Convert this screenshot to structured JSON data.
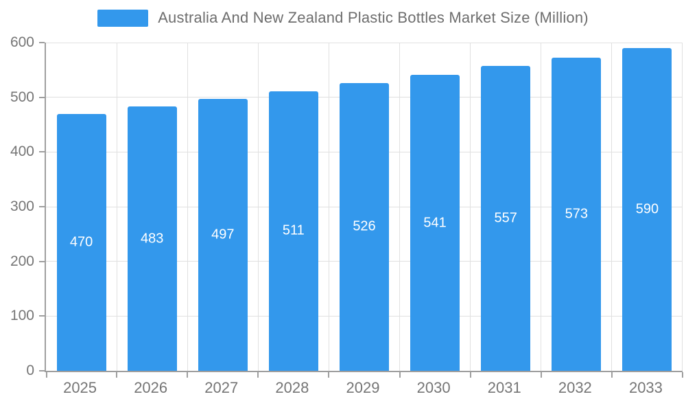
{
  "legend": {
    "title": "Australia And New Zealand Plastic Bottles Market Size (Million)"
  },
  "chart_data": {
    "type": "bar",
    "title": "Australia And New Zealand Plastic Bottles Market Size (Million)",
    "categories": [
      "2025",
      "2026",
      "2027",
      "2028",
      "2029",
      "2030",
      "2031",
      "2032",
      "2033"
    ],
    "values": [
      470,
      483,
      497,
      511,
      526,
      541,
      557,
      573,
      590
    ],
    "xlabel": "",
    "ylabel": "",
    "ylim": [
      0,
      600
    ],
    "yticks": [
      0,
      100,
      200,
      300,
      400,
      500,
      600
    ],
    "grid": true,
    "legend_position": "top",
    "bar_color": "#3398EC",
    "label_color": "#ffffff",
    "axis_color": "#9e9e9e",
    "gridline_color": "#e0e0e0",
    "tick_label_color": "#757575"
  }
}
